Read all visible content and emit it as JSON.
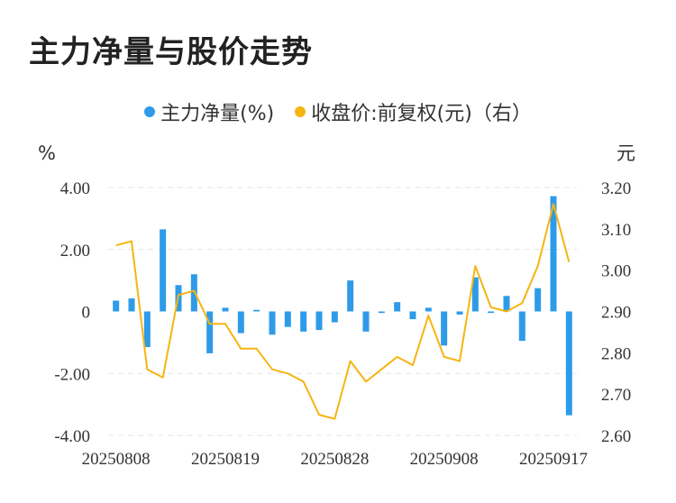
{
  "title": "主力净量与股价走势",
  "colors": {
    "bar": "#2e9be8",
    "line": "#f5b512",
    "grid": "#e3e3e3"
  },
  "chart_data": {
    "type": "bar+line",
    "legend": [
      {
        "label": "主力净量(%)",
        "color": "#2e9be8"
      },
      {
        "label": "收盘价:前复权(元)（右）",
        "color": "#f5b512"
      }
    ],
    "y_left": {
      "unit": "%",
      "ticks": [
        "4.00",
        "2.00",
        "0",
        "-2.00",
        "-4.00"
      ],
      "range": [
        -4,
        4
      ]
    },
    "y_right": {
      "unit": "元",
      "ticks": [
        "3.20",
        "3.10",
        "3.00",
        "2.90",
        "2.80",
        "2.70",
        "2.60"
      ],
      "range": [
        2.6,
        3.2
      ]
    },
    "x_labels": [
      "20250808",
      "20250819",
      "20250828",
      "20250908",
      "20250917"
    ],
    "series": [
      {
        "name": "主力净量(%)",
        "type": "bar",
        "values": [
          0.35,
          0.42,
          -1.15,
          2.65,
          0.85,
          1.2,
          -1.35,
          0.12,
          -0.7,
          0.05,
          -0.75,
          -0.5,
          -0.65,
          -0.6,
          -0.35,
          1.0,
          -0.65,
          -0.05,
          0.3,
          -0.25,
          0.12,
          -1.1,
          -0.1,
          1.1,
          -0.05,
          0.5,
          -0.95,
          0.75,
          3.72,
          -3.35
        ]
      },
      {
        "name": "收盘价:前复权(元)（右）",
        "type": "line",
        "values": [
          3.06,
          3.07,
          2.76,
          2.74,
          2.94,
          2.95,
          2.87,
          2.87,
          2.81,
          2.81,
          2.76,
          2.75,
          2.73,
          2.65,
          2.64,
          2.78,
          2.73,
          2.76,
          2.79,
          2.77,
          2.89,
          2.79,
          2.78,
          3.01,
          2.91,
          2.9,
          2.92,
          3.01,
          3.16,
          3.02
        ]
      }
    ]
  }
}
